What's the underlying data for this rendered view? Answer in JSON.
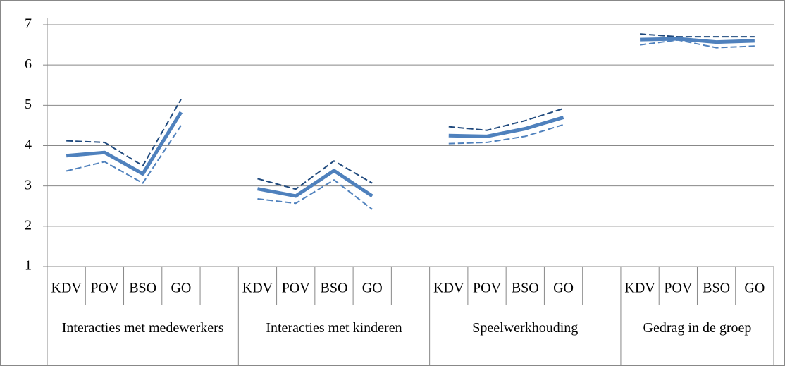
{
  "chart_data": {
    "type": "line",
    "categories": [
      "KDV",
      "POV",
      "BSO",
      "GO",
      null,
      "KDV",
      "POV",
      "BSO",
      "GO",
      null,
      "KDV",
      "POV",
      "BSO",
      "GO",
      null,
      "KDV",
      "POV",
      "BSO",
      "GO"
    ],
    "groups": [
      "Interacties met medewerkers",
      "Interacties met kinderen",
      "Speelwerkhouding",
      "Gedrag in de groep"
    ],
    "series": [
      {
        "color": "#1f497d",
        "dash": true,
        "width": 2,
        "values": [
          4.12,
          4.08,
          3.5,
          5.15,
          null,
          3.18,
          2.92,
          3.62,
          3.07,
          null,
          4.47,
          4.38,
          4.62,
          4.92,
          null,
          6.77,
          6.7,
          6.7,
          6.7
        ]
      },
      {
        "color": "#4f81bd",
        "dash": true,
        "width": 2,
        "values": [
          3.37,
          3.6,
          3.07,
          4.5,
          null,
          2.68,
          2.57,
          3.15,
          2.42,
          null,
          4.05,
          4.08,
          4.23,
          4.52,
          null,
          6.5,
          6.62,
          6.43,
          6.47
        ]
      },
      {
        "color": "#4f81bd",
        "dash": false,
        "width": 5,
        "values": [
          3.75,
          3.83,
          3.3,
          4.83,
          null,
          2.93,
          2.75,
          3.38,
          2.75,
          null,
          4.25,
          4.23,
          4.42,
          4.7,
          null,
          6.63,
          6.65,
          6.57,
          6.6
        ]
      }
    ],
    "ylim": [
      1,
      7
    ],
    "yticks": [
      1,
      2,
      3,
      4,
      5,
      6,
      7
    ],
    "grid": true
  }
}
